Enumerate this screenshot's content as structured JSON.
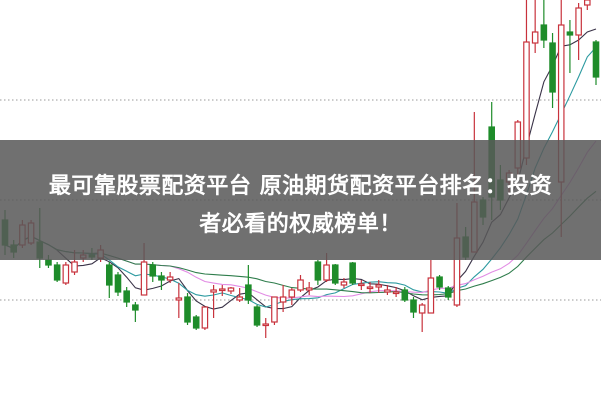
{
  "title": {
    "line1": "最可靠股票配资平台 原油期货配资平台排名：投资",
    "line2": "者必看的权威榜单！"
  },
  "chart_data": {
    "type": "candlestick",
    "ylim": [
      0,
      40
    ],
    "grid": "dotted horizontal",
    "gridlines": [
      10,
      20,
      30
    ],
    "colors": {
      "up": "#c8323c",
      "down": "#1e8c2a",
      "ma5": "#3a3348",
      "ma10": "#2c9aa0",
      "ma20": "#e28ce4",
      "ma30": "#2f7d4c",
      "grid": "#9a9a9a"
    },
    "moving_averages": [
      5,
      10,
      20,
      30
    ],
    "candles": [
      [
        18,
        15.5,
        19,
        14.5
      ],
      [
        15.5,
        14.8,
        16,
        14.2
      ],
      [
        15.5,
        17.5,
        18,
        15.2
      ],
      [
        15.7,
        17.7,
        18,
        15.5
      ],
      [
        15.8,
        14.2,
        19.2,
        13.2
      ],
      [
        14,
        13.5,
        14.5,
        13.2
      ],
      [
        13.5,
        12,
        13.8,
        11.8
      ],
      [
        11.7,
        13.5,
        13.8,
        11.5
      ],
      [
        12.8,
        13.8,
        15,
        12.5
      ],
      [
        14.2,
        14.5,
        15,
        13.8
      ],
      [
        14.5,
        14.3,
        15.2,
        14
      ],
      [
        14.2,
        15,
        15.5,
        13.8
      ],
      [
        13.5,
        11.5,
        13.8,
        10.2
      ],
      [
        12.5,
        10.8,
        12.8,
        10.4
      ],
      [
        10.9,
        9.8,
        11.3,
        9.3
      ],
      [
        9.5,
        9,
        9.8,
        7.8
      ],
      [
        10.5,
        13.8,
        15.7,
        10.5
      ],
      [
        13.5,
        12.4,
        13.8,
        11.8
      ],
      [
        12.4,
        12,
        12.8,
        11
      ],
      [
        12,
        12.3,
        12.8,
        11.7
      ],
      [
        10,
        10.2,
        11.7,
        8.2
      ],
      [
        10.3,
        7.8,
        10.7,
        7.5
      ],
      [
        8.3,
        7.2,
        8.5,
        7
      ],
      [
        7.2,
        9.3,
        9.3,
        7
      ],
      [
        10.8,
        11,
        11.5,
        8.2
      ],
      [
        11,
        11.1,
        11.5,
        10.4
      ],
      [
        10.9,
        11.2,
        11.3,
        10.6
      ],
      [
        10,
        10.3,
        11.2,
        9.8
      ],
      [
        11.5,
        10,
        13.5,
        9.6
      ],
      [
        9.3,
        7.5,
        9.5,
        7.3
      ],
      [
        7.5,
        7.6,
        8.2,
        6.2
      ],
      [
        7.8,
        10.3,
        10.3,
        7.5
      ],
      [
        9.8,
        10.3,
        11.5,
        8.8
      ],
      [
        10.3,
        11,
        11.2,
        9.5
      ],
      [
        11,
        12,
        12.5,
        10.8
      ],
      [
        11,
        11.2,
        11.8,
        10.5
      ],
      [
        13.8,
        12,
        14,
        11.5
      ],
      [
        12,
        13.5,
        14.7,
        11.8
      ],
      [
        13.5,
        11.7,
        13.6,
        11.5
      ],
      [
        11.5,
        11.8,
        12.2,
        11.2
      ],
      [
        13.7,
        11.7,
        13.8,
        11.5
      ],
      [
        11.5,
        11.6,
        12,
        11
      ],
      [
        11.2,
        11.3,
        11.8,
        10.7
      ],
      [
        11.3,
        11.5,
        12,
        10.7
      ],
      [
        10.8,
        11,
        11.5,
        10.5
      ],
      [
        10.7,
        10.8,
        11.3,
        10.3
      ],
      [
        11,
        10,
        11.3,
        9.8
      ],
      [
        10,
        8.8,
        10.3,
        8.2
      ],
      [
        8.7,
        9.5,
        9.7,
        6.8
      ],
      [
        8.7,
        12.2,
        14,
        8.7
      ],
      [
        12.3,
        11.3,
        12.5,
        11
      ],
      [
        11.2,
        10.3,
        11.4,
        10
      ],
      [
        9.5,
        16.2,
        19.7,
        9.3
      ],
      [
        16.3,
        14.3,
        17.3,
        14
      ],
      [
        14.8,
        19.8,
        28.8,
        14.8
      ],
      [
        20,
        18.3,
        20.3,
        17.5
      ],
      [
        27.3,
        20.3,
        29.8,
        18
      ],
      [
        22,
        20,
        23.5,
        19
      ],
      [
        21.8,
        22.7,
        23,
        20.5
      ],
      [
        23.2,
        27.8,
        28,
        22
      ],
      [
        24.2,
        35.8,
        40,
        23.5
      ],
      [
        35.7,
        36.8,
        40,
        34.7
      ],
      [
        37.5,
        36,
        40,
        35.2
      ],
      [
        35.7,
        30.8,
        36.7,
        29.2
      ],
      [
        21.8,
        37.5,
        40,
        16.3
      ],
      [
        36.8,
        36.5,
        38,
        32.7
      ],
      [
        36.5,
        39.2,
        39.7,
        34
      ],
      [
        39.5,
        40,
        40.2,
        39
      ],
      [
        35.8,
        32.3,
        36,
        31.5
      ]
    ]
  }
}
